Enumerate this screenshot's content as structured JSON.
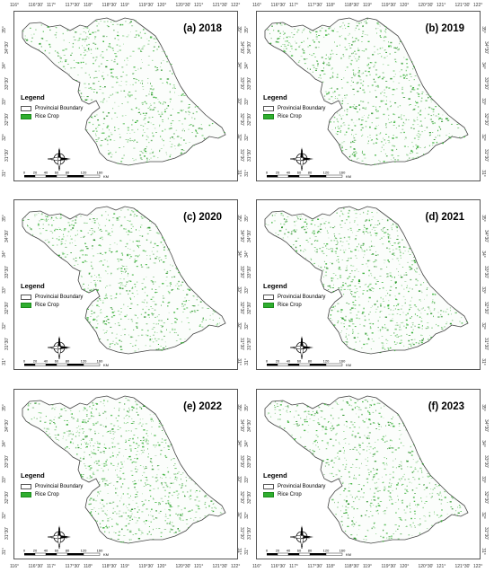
{
  "top_axis": [
    "116°",
    "116°30'",
    "117°",
    "117°30'",
    "118°",
    "118°30'",
    "119°",
    "119°30'",
    "120°",
    "120°30'",
    "121°",
    "121°30'",
    "122°"
  ],
  "bottom_axis": [
    "116°",
    "116°30'",
    "117°",
    "117°30'",
    "118°",
    "118°30'",
    "119°",
    "119°30'",
    "120°",
    "120°30'",
    "121°",
    "121°30'",
    "122°"
  ],
  "left_axis": [
    "35°",
    "34°30'",
    "34°",
    "33°30'",
    "33°",
    "32°30'",
    "32°",
    "31°30'",
    "31°"
  ],
  "right_axis": [
    "35°",
    "34°30'",
    "34°",
    "33°30'",
    "33°",
    "32°30'",
    "32°",
    "31°30'",
    "31°"
  ],
  "legend": {
    "title": "Legend",
    "boundary_label": "Provincial Boundary",
    "rice_label": "Rice Crop"
  },
  "compass": {
    "n": "N",
    "e": "E",
    "s": "S",
    "w": "W"
  },
  "scale": {
    "ticks": [
      "0",
      "20",
      "40",
      "60",
      "80",
      "120",
      "160"
    ],
    "unit": "KM"
  },
  "colors": {
    "rice": "#2fae2f",
    "rice_dark": "#1a8a1a",
    "boundary": "#555555"
  },
  "panels": [
    {
      "title": "(a) 2018",
      "density": 0.48
    },
    {
      "title": "(b) 2019",
      "density": 0.58
    },
    {
      "title": "(c) 2020",
      "density": 0.55
    },
    {
      "title": "(d) 2021",
      "density": 0.62
    },
    {
      "title": "(e) 2022",
      "density": 0.62
    },
    {
      "title": "(f) 2023",
      "density": 0.52
    }
  ]
}
